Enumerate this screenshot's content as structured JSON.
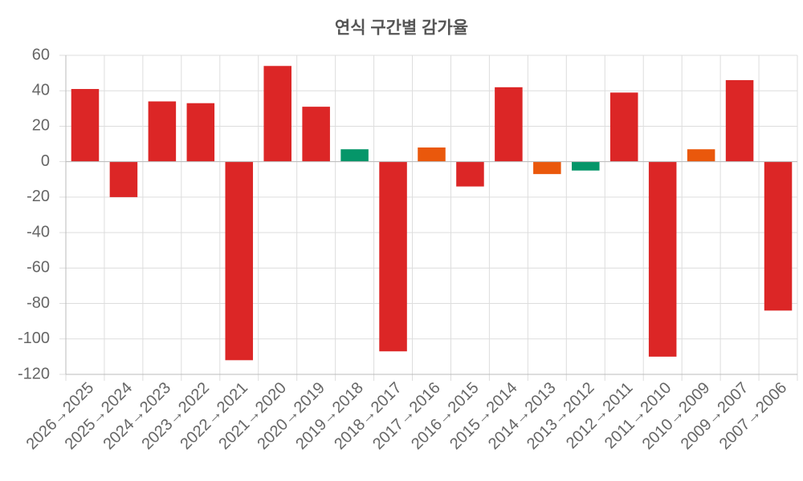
{
  "chart_data": {
    "type": "bar",
    "title": "연식 구간별 감가율",
    "categories": [
      "2026→2025",
      "2025→2024",
      "2024→2023",
      "2023→2022",
      "2022→2021",
      "2021→2020",
      "2020→2019",
      "2019→2018",
      "2018→2017",
      "2017→2016",
      "2016→2015",
      "2015→2014",
      "2014→2013",
      "2013→2012",
      "2012→2011",
      "2011→2010",
      "2010→2009",
      "2009→2007",
      "2007→2006"
    ],
    "values": [
      41,
      -20,
      34,
      33,
      -112,
      54,
      31,
      7,
      -107,
      8,
      -14,
      42,
      -7,
      -5,
      39,
      -110,
      7,
      46,
      -84
    ],
    "colors": [
      "#dc2626",
      "#dc2626",
      "#dc2626",
      "#dc2626",
      "#dc2626",
      "#dc2626",
      "#dc2626",
      "#059669",
      "#dc2626",
      "#ea580c",
      "#dc2626",
      "#dc2626",
      "#ea580c",
      "#059669",
      "#dc2626",
      "#dc2626",
      "#ea580c",
      "#dc2626",
      "#dc2626"
    ],
    "ylim": [
      -120,
      60
    ],
    "yticks": [
      -120,
      -100,
      -80,
      -60,
      -40,
      -20,
      0,
      20,
      40,
      60
    ],
    "grid": true
  }
}
